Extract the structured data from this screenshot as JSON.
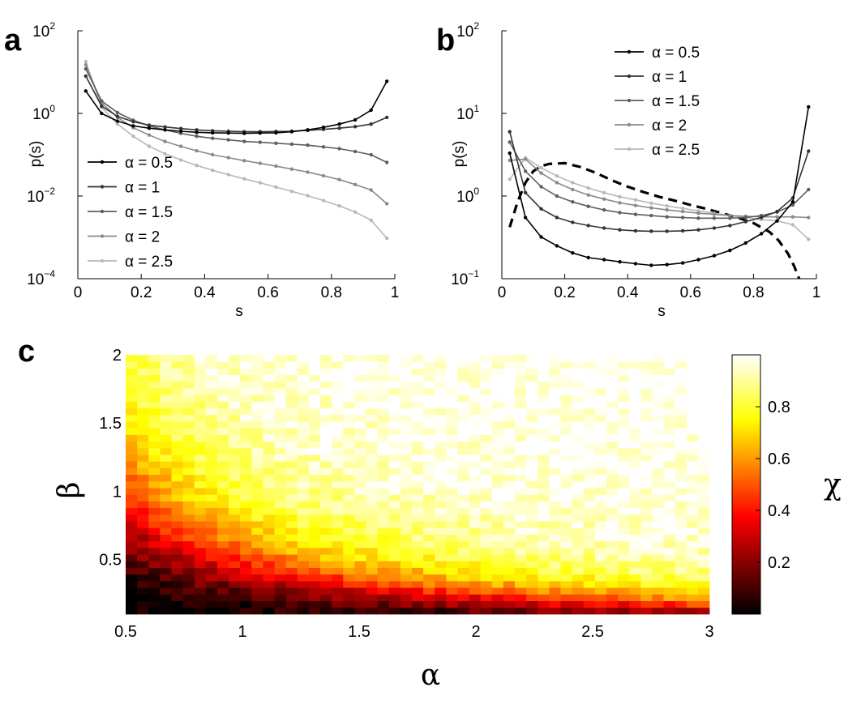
{
  "panel_labels": [
    "a",
    "b",
    "c"
  ],
  "chart_data": [
    {
      "panel": "a",
      "type": "line",
      "yscale": "log",
      "xlabel": "s",
      "ylabel": "p(s)",
      "xlim": [
        0,
        1
      ],
      "ylim": [
        0.0001,
        100
      ],
      "xticks": [
        0,
        0.2,
        0.4,
        0.6,
        0.8,
        1
      ],
      "xtick_labels": [
        "0",
        "0.2",
        "0.4",
        "0.6",
        "0.8",
        "1"
      ],
      "yticks": [
        {
          "base": "10",
          "exp": "2",
          "value": 100
        },
        {
          "base": "10",
          "exp": "0",
          "value": 1
        },
        {
          "base": "10",
          "exp": "−2",
          "value": 0.01
        },
        {
          "base": "10",
          "exp": "−4",
          "value": 0.0001
        }
      ],
      "legend_position": "lower-left",
      "x": [
        0.025,
        0.075,
        0.125,
        0.175,
        0.225,
        0.275,
        0.325,
        0.375,
        0.425,
        0.475,
        0.525,
        0.575,
        0.625,
        0.675,
        0.725,
        0.775,
        0.825,
        0.875,
        0.925,
        0.975
      ],
      "series": [
        {
          "name": "α = 0.5",
          "color": "#000000",
          "values": [
            3.5,
            1.0,
            0.65,
            0.5,
            0.44,
            0.4,
            0.37,
            0.35,
            0.34,
            0.335,
            0.33,
            0.335,
            0.34,
            0.36,
            0.4,
            0.46,
            0.55,
            0.7,
            1.2,
            6.0
          ]
        },
        {
          "name": "α = 1",
          "color": "#333333",
          "values": [
            8.0,
            1.5,
            0.85,
            0.63,
            0.52,
            0.47,
            0.43,
            0.4,
            0.38,
            0.37,
            0.36,
            0.36,
            0.365,
            0.37,
            0.39,
            0.41,
            0.44,
            0.48,
            0.55,
            0.8
          ]
        },
        {
          "name": "α = 1.5",
          "color": "#5e5e5e",
          "values": [
            12.0,
            2.0,
            1.05,
            0.68,
            0.5,
            0.4,
            0.33,
            0.28,
            0.25,
            0.23,
            0.21,
            0.2,
            0.19,
            0.18,
            0.17,
            0.155,
            0.14,
            0.12,
            0.1,
            0.065
          ]
        },
        {
          "name": "α = 2",
          "color": "#8a8a8a",
          "values": [
            15.0,
            1.8,
            0.8,
            0.45,
            0.3,
            0.21,
            0.16,
            0.125,
            0.1,
            0.085,
            0.072,
            0.062,
            0.053,
            0.045,
            0.038,
            0.031,
            0.025,
            0.019,
            0.014,
            0.0065
          ]
        },
        {
          "name": "α = 2.5",
          "color": "#b8b8b8",
          "values": [
            18.0,
            1.4,
            0.55,
            0.28,
            0.16,
            0.105,
            0.075,
            0.055,
            0.042,
            0.033,
            0.026,
            0.021,
            0.0165,
            0.013,
            0.0102,
            0.0078,
            0.0058,
            0.0041,
            0.0026,
            0.00095
          ]
        }
      ]
    },
    {
      "panel": "b",
      "type": "line",
      "yscale": "log",
      "xlabel": "s",
      "ylabel": "p(s)",
      "xlim": [
        0,
        1
      ],
      "ylim": [
        0.1,
        100
      ],
      "xticks": [
        0,
        0.2,
        0.4,
        0.6,
        0.8,
        1
      ],
      "xtick_labels": [
        "0",
        "0.2",
        "0.4",
        "0.6",
        "0.8",
        "1"
      ],
      "yticks": [
        {
          "base": "10",
          "exp": "2",
          "value": 100
        },
        {
          "base": "10",
          "exp": "1",
          "value": 10
        },
        {
          "base": "10",
          "exp": "0",
          "value": 1
        },
        {
          "base": "10",
          "exp": "−1",
          "value": 0.1
        }
      ],
      "legend_position": "top-center",
      "x": [
        0.025,
        0.075,
        0.125,
        0.175,
        0.225,
        0.275,
        0.325,
        0.375,
        0.425,
        0.475,
        0.525,
        0.575,
        0.625,
        0.675,
        0.725,
        0.775,
        0.825,
        0.875,
        0.925,
        0.975
      ],
      "series": [
        {
          "name": "α = 0.5",
          "color": "#000000",
          "values": [
            3.3,
            0.55,
            0.32,
            0.25,
            0.205,
            0.18,
            0.17,
            0.16,
            0.152,
            0.145,
            0.148,
            0.155,
            0.17,
            0.19,
            0.22,
            0.27,
            0.35,
            0.5,
            0.85,
            12.0
          ]
        },
        {
          "name": "α = 1",
          "color": "#333333",
          "values": [
            6.0,
            1.1,
            0.7,
            0.55,
            0.48,
            0.44,
            0.41,
            0.39,
            0.38,
            0.375,
            0.375,
            0.38,
            0.39,
            0.41,
            0.44,
            0.49,
            0.55,
            0.65,
            0.95,
            3.5
          ]
        },
        {
          "name": "α = 1.5",
          "color": "#5e5e5e",
          "values": [
            4.5,
            2.0,
            1.3,
            1.0,
            0.85,
            0.75,
            0.68,
            0.63,
            0.6,
            0.58,
            0.56,
            0.55,
            0.54,
            0.54,
            0.54,
            0.55,
            0.58,
            0.64,
            0.78,
            1.2
          ]
        },
        {
          "name": "α = 2",
          "color": "#8a8a8a",
          "values": [
            2.7,
            2.8,
            1.9,
            1.45,
            1.2,
            1.03,
            0.92,
            0.83,
            0.77,
            0.72,
            0.68,
            0.65,
            0.62,
            0.6,
            0.58,
            0.57,
            0.56,
            0.56,
            0.56,
            0.55
          ]
        },
        {
          "name": "α = 2.5",
          "color": "#b8b8b8",
          "values": [
            1.6,
            2.9,
            2.2,
            1.75,
            1.45,
            1.25,
            1.1,
            0.98,
            0.9,
            0.82,
            0.76,
            0.71,
            0.66,
            0.62,
            0.58,
            0.55,
            0.52,
            0.5,
            0.45,
            0.3
          ]
        }
      ],
      "reference": {
        "style": "dashed",
        "color": "#000000",
        "x": [
          0.025,
          0.05,
          0.075,
          0.1,
          0.125,
          0.15,
          0.2,
          0.25,
          0.3,
          0.35,
          0.4,
          0.45,
          0.5,
          0.55,
          0.6,
          0.65,
          0.7,
          0.75,
          0.8,
          0.85,
          0.88,
          0.91,
          0.93,
          0.945
        ],
        "values": [
          0.42,
          0.85,
          1.45,
          2.0,
          2.3,
          2.45,
          2.5,
          2.25,
          1.9,
          1.55,
          1.3,
          1.12,
          0.98,
          0.88,
          0.78,
          0.7,
          0.62,
          0.55,
          0.47,
          0.37,
          0.29,
          0.2,
          0.14,
          0.1
        ]
      }
    },
    {
      "panel": "c",
      "type": "heatmap",
      "xlabel": "α",
      "ylabel": "β",
      "colorbar_label": "χ",
      "xlim": [
        0.5,
        3
      ],
      "ylim": [
        0.1,
        2
      ],
      "xticks": [
        0.5,
        1,
        1.5,
        2,
        2.5,
        3
      ],
      "xtick_labels": [
        "0.5",
        "1",
        "1.5",
        "2",
        "2.5",
        "3"
      ],
      "yticks": [
        0.5,
        1,
        1.5,
        2
      ],
      "ytick_labels": [
        "0.5",
        "1",
        "1.5",
        "2"
      ],
      "clim": [
        0,
        1
      ],
      "colorbar_ticks": [
        0.2,
        0.4,
        0.6,
        0.8
      ],
      "colorbar_tick_labels": [
        "0.2",
        "0.4",
        "0.6",
        "0.8"
      ],
      "colormap": "hot",
      "grid_size": [
        51,
        39
      ],
      "model": "chi rises with alpha and beta; transition where alpha*beta ~ 0.55; blank region for beta > 1.42 at alpha > 2.9"
    }
  ]
}
